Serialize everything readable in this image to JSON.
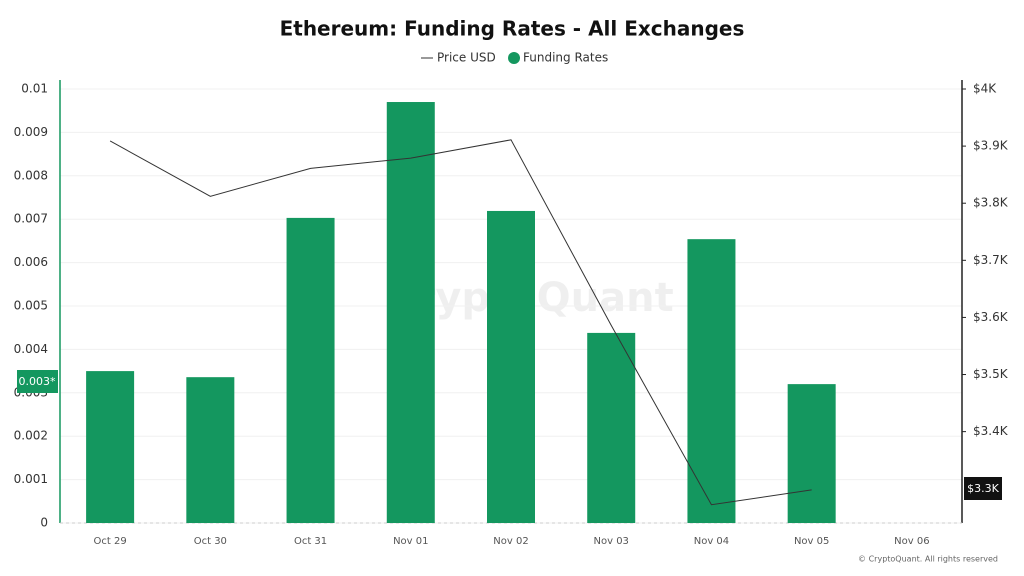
{
  "chart_data": {
    "type": "bar",
    "title": "Ethereum: Funding Rates - All Exchanges",
    "categories": [
      "Oct 29",
      "Oct 30",
      "Oct 31",
      "Nov 01",
      "Nov 02",
      "Nov 03",
      "Nov 04",
      "Nov 05",
      "Nov 06"
    ],
    "series": [
      {
        "name": "Price USD",
        "type": "line",
        "axis": "y2",
        "color": "#333333",
        "values": [
          3909,
          3812,
          3861,
          3879,
          3911,
          3586,
          3272,
          3298,
          null
        ]
      },
      {
        "name": "Funding Rates",
        "type": "bar",
        "color": "#14975f",
        "values": [
          0.0035,
          0.00336,
          0.00703,
          0.0097,
          0.00719,
          0.00438,
          0.00654,
          0.0032,
          null
        ]
      }
    ],
    "ylim": [
      0,
      0.01
    ],
    "yticks": [
      0,
      0.001,
      0.002,
      0.003,
      0.004,
      0.005,
      0.006,
      0.007,
      0.008,
      0.009,
      0.01
    ],
    "y2lim": [
      3240,
      4000
    ],
    "y2ticks": [
      {
        "value": 3400,
        "label": "$3.4K"
      },
      {
        "value": 3500,
        "label": "$3.5K"
      },
      {
        "value": 3600,
        "label": "$3.6K"
      },
      {
        "value": 3700,
        "label": "$3.7K"
      },
      {
        "value": 3800,
        "label": "$3.8K"
      },
      {
        "value": 3900,
        "label": "$3.9K"
      },
      {
        "value": 4000,
        "label": "$4K"
      }
    ],
    "annotations": [
      "0.003*",
      "$3.3K"
    ],
    "watermark": "CryptoQuant",
    "footer": "© CryptoQuant. All rights reserved",
    "grid": true
  }
}
